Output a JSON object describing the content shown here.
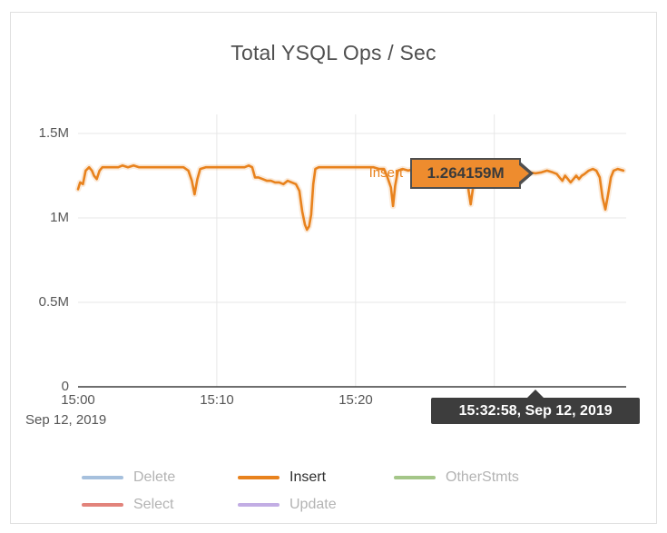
{
  "chart_data": {
    "type": "line",
    "title": "Total YSQL Ops / Sec",
    "x_axis": {
      "ticks": [
        {
          "label": "15:00",
          "minute": 0
        },
        {
          "label": "15:10",
          "minute": 10
        },
        {
          "label": "15:20",
          "minute": 20
        }
      ],
      "grid_minutes": [
        10,
        20,
        30
      ],
      "context_label": "Sep 12, 2019",
      "range_minutes": [
        0,
        39.5
      ]
    },
    "y_axis": {
      "ticks": [
        {
          "label": "0",
          "value": 0
        },
        {
          "label": "0.5M",
          "value": 0.5
        },
        {
          "label": "1M",
          "value": 1
        },
        {
          "label": "1.5M",
          "value": 1.5
        }
      ],
      "grid_values": [
        0.5,
        1,
        1.5
      ],
      "range": [
        0,
        1.5
      ]
    },
    "series": [
      {
        "name": "Delete",
        "color": "#a6c0dd",
        "active": false,
        "points": []
      },
      {
        "name": "Insert",
        "color": "#e8821d",
        "active": true,
        "points": [
          [
            0,
            1.17
          ],
          [
            0.15,
            1.21
          ],
          [
            0.35,
            1.2
          ],
          [
            0.55,
            1.28
          ],
          [
            0.8,
            1.3
          ],
          [
            1,
            1.28
          ],
          [
            1.15,
            1.25
          ],
          [
            1.35,
            1.23
          ],
          [
            1.55,
            1.28
          ],
          [
            1.75,
            1.3
          ],
          [
            2.1,
            1.3
          ],
          [
            2.5,
            1.3
          ],
          [
            2.9,
            1.3
          ],
          [
            3.2,
            1.31
          ],
          [
            3.6,
            1.3
          ],
          [
            4,
            1.31
          ],
          [
            4.4,
            1.3
          ],
          [
            4.8,
            1.3
          ],
          [
            5.2,
            1.3
          ],
          [
            5.6,
            1.3
          ],
          [
            6,
            1.3
          ],
          [
            6.4,
            1.3
          ],
          [
            6.8,
            1.3
          ],
          [
            7.2,
            1.3
          ],
          [
            7.6,
            1.3
          ],
          [
            7.95,
            1.28
          ],
          [
            8.2,
            1.22
          ],
          [
            8.4,
            1.14
          ],
          [
            8.6,
            1.23
          ],
          [
            8.8,
            1.29
          ],
          [
            9.2,
            1.3
          ],
          [
            9.6,
            1.3
          ],
          [
            10,
            1.3
          ],
          [
            10.4,
            1.3
          ],
          [
            10.8,
            1.3
          ],
          [
            11.2,
            1.3
          ],
          [
            11.6,
            1.3
          ],
          [
            12,
            1.3
          ],
          [
            12.3,
            1.31
          ],
          [
            12.55,
            1.3
          ],
          [
            12.75,
            1.24
          ],
          [
            13,
            1.24
          ],
          [
            13.3,
            1.23
          ],
          [
            13.6,
            1.22
          ],
          [
            13.9,
            1.22
          ],
          [
            14.2,
            1.21
          ],
          [
            14.5,
            1.21
          ],
          [
            14.8,
            1.2
          ],
          [
            15.1,
            1.22
          ],
          [
            15.4,
            1.21
          ],
          [
            15.7,
            1.2
          ],
          [
            15.95,
            1.16
          ],
          [
            16.15,
            1.04
          ],
          [
            16.35,
            0.96
          ],
          [
            16.5,
            0.93
          ],
          [
            16.65,
            0.95
          ],
          [
            16.8,
            1.02
          ],
          [
            16.95,
            1.2
          ],
          [
            17.1,
            1.29
          ],
          [
            17.35,
            1.3
          ],
          [
            17.7,
            1.3
          ],
          [
            18.1,
            1.3
          ],
          [
            18.5,
            1.3
          ],
          [
            18.9,
            1.3
          ],
          [
            19.3,
            1.3
          ],
          [
            19.7,
            1.3
          ],
          [
            20.1,
            1.3
          ],
          [
            20.5,
            1.3
          ],
          [
            20.9,
            1.3
          ],
          [
            21.3,
            1.3
          ],
          [
            21.7,
            1.29
          ],
          [
            22.05,
            1.29
          ],
          [
            22.3,
            1.24
          ],
          [
            22.55,
            1.18
          ],
          [
            22.7,
            1.07
          ],
          [
            22.85,
            1.19
          ],
          [
            23.05,
            1.28
          ],
          [
            23.4,
            1.29
          ],
          [
            23.8,
            1.28
          ],
          [
            24.2,
            1.29
          ],
          [
            24.6,
            1.28
          ],
          [
            25,
            1.28
          ],
          [
            25.4,
            1.29
          ],
          [
            25.8,
            1.28
          ],
          [
            26.2,
            1.28
          ],
          [
            26.6,
            1.29
          ],
          [
            27,
            1.28
          ],
          [
            27.4,
            1.28
          ],
          [
            27.8,
            1.29
          ],
          [
            28,
            1.27
          ],
          [
            28.15,
            1.16
          ],
          [
            28.3,
            1.08
          ],
          [
            28.45,
            1.17
          ],
          [
            28.6,
            1.27
          ],
          [
            28.9,
            1.28
          ],
          [
            29.3,
            1.28
          ],
          [
            29.7,
            1.28
          ],
          [
            30.1,
            1.28
          ],
          [
            30.5,
            1.28
          ],
          [
            30.9,
            1.28
          ],
          [
            31.3,
            1.28
          ],
          [
            31.7,
            1.28
          ],
          [
            32.1,
            1.27
          ],
          [
            32.5,
            1.27
          ],
          [
            32.97,
            1.264159
          ],
          [
            33.4,
            1.27
          ],
          [
            33.8,
            1.28
          ],
          [
            34.2,
            1.27
          ],
          [
            34.5,
            1.26
          ],
          [
            34.7,
            1.24
          ],
          [
            34.9,
            1.22
          ],
          [
            35.1,
            1.25
          ],
          [
            35.3,
            1.23
          ],
          [
            35.5,
            1.21
          ],
          [
            35.7,
            1.23
          ],
          [
            35.9,
            1.25
          ],
          [
            36.1,
            1.23
          ],
          [
            36.3,
            1.25
          ],
          [
            36.5,
            1.26
          ],
          [
            36.8,
            1.28
          ],
          [
            37.1,
            1.29
          ],
          [
            37.35,
            1.28
          ],
          [
            37.6,
            1.24
          ],
          [
            37.8,
            1.12
          ],
          [
            38,
            1.05
          ],
          [
            38.2,
            1.14
          ],
          [
            38.4,
            1.24
          ],
          [
            38.6,
            1.28
          ],
          [
            38.9,
            1.29
          ],
          [
            39.3,
            1.28
          ]
        ]
      },
      {
        "name": "OtherStmts",
        "color": "#a4c688",
        "active": false,
        "points": []
      },
      {
        "name": "Select",
        "color": "#e2837b",
        "active": false,
        "points": []
      },
      {
        "name": "Update",
        "color": "#c2ade4",
        "active": false,
        "points": []
      }
    ],
    "hover": {
      "series": "Insert",
      "value_label": "1.264159M",
      "time_label": "15:32:58, Sep 12, 2019",
      "minute": 32.97,
      "value": 1.264159
    },
    "colors": {
      "grid": "#e7e7e7",
      "axis": "#3f3f3f",
      "value_tooltip_bg": "#ee8c2e",
      "value_tooltip_border": "#4f4f4f",
      "time_tooltip_bg": "#3d3d3d"
    },
    "legend_position": "bottom"
  }
}
